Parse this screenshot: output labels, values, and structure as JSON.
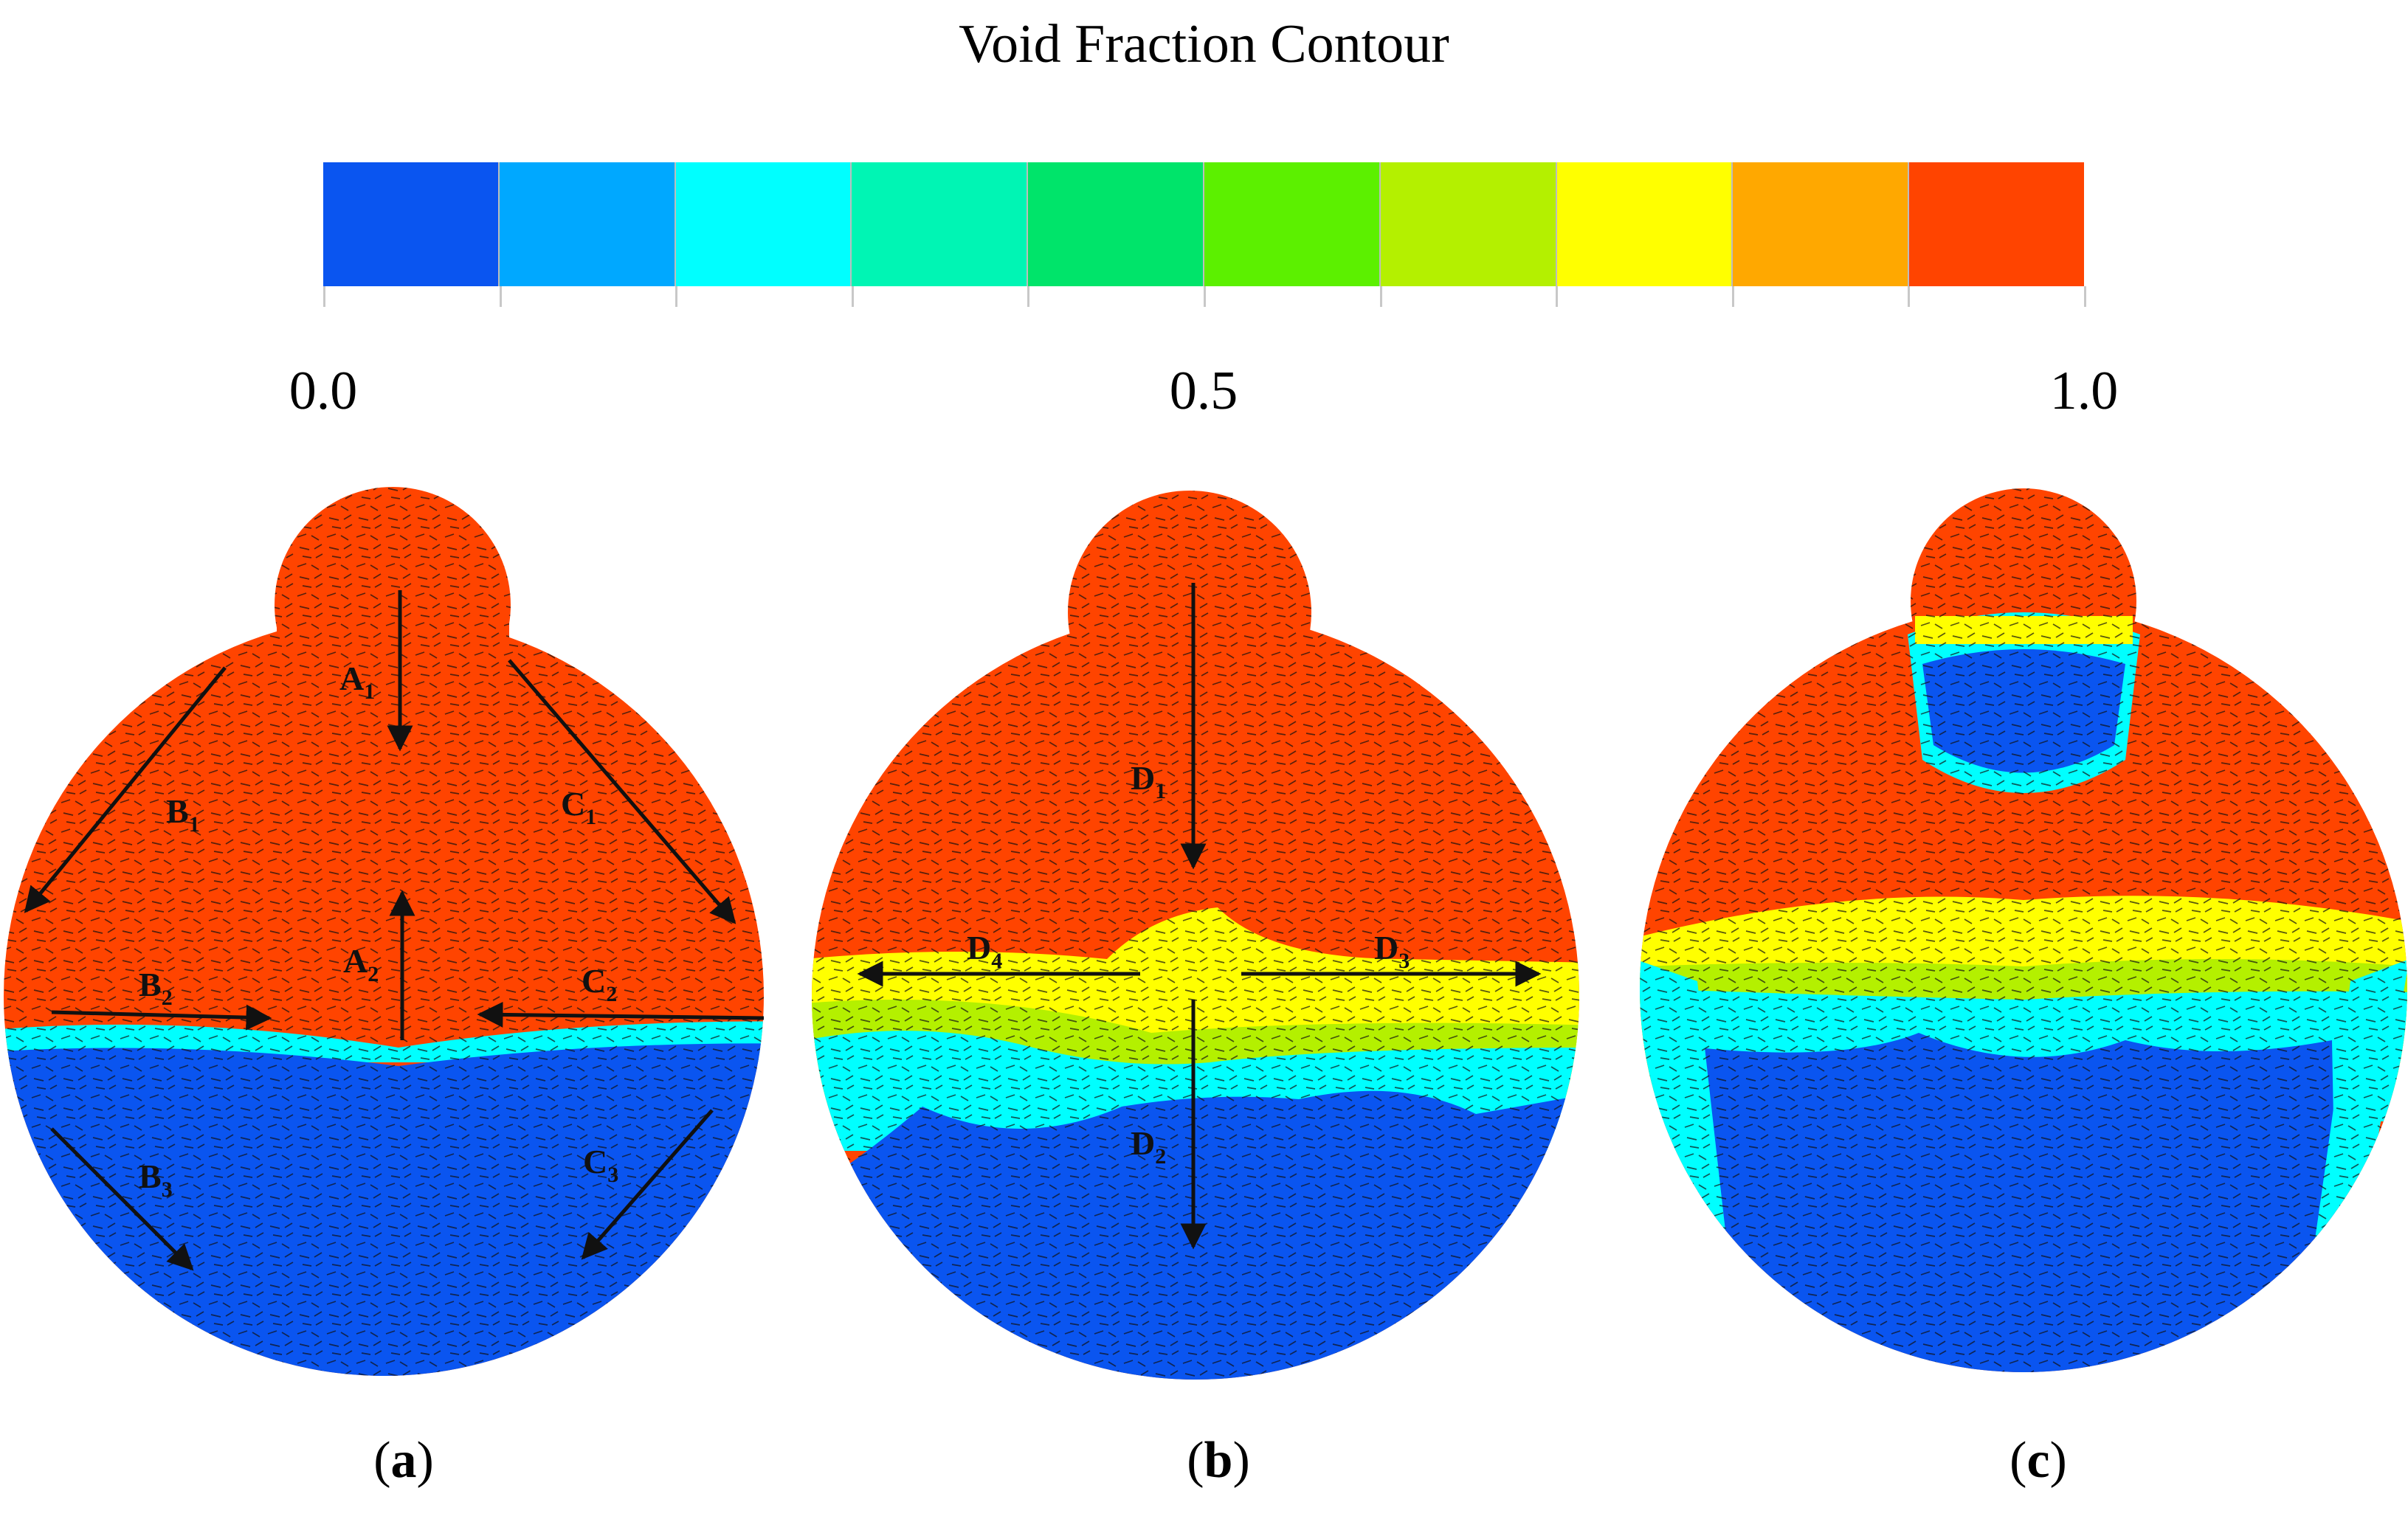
{
  "title": "Void Fraction Contour",
  "colorbar": {
    "colors": [
      "#0a55f0",
      "#00a8ff",
      "#00ffff",
      "#00f5b4",
      "#00e46a",
      "#5cf000",
      "#b4f000",
      "#ffff00",
      "#ffa800",
      "#ff4400"
    ],
    "labels": [
      "0.0",
      "0.5",
      "1.0"
    ],
    "label_values": [
      0.0,
      0.5,
      1.0
    ],
    "range": [
      0.0,
      1.0
    ],
    "segments": 10
  },
  "fill": {
    "liquid": "#0a55f0",
    "gas": "#ff4400",
    "mixed": [
      "#00ffff",
      "#b4f000",
      "#ffff00"
    ]
  },
  "panels": [
    {
      "label_open": "(",
      "label_letter": "a",
      "label_close": ")",
      "arrows": [
        {
          "base": "A",
          "sub": "1"
        },
        {
          "base": "A",
          "sub": "2"
        },
        {
          "base": "B",
          "sub": "1"
        },
        {
          "base": "B",
          "sub": "2"
        },
        {
          "base": "B",
          "sub": "3"
        },
        {
          "base": "C",
          "sub": "1"
        },
        {
          "base": "C",
          "sub": "2"
        },
        {
          "base": "C",
          "sub": "3"
        }
      ]
    },
    {
      "label_open": "(",
      "label_letter": "b",
      "label_close": ")",
      "arrows": [
        {
          "base": "D",
          "sub": "1"
        },
        {
          "base": "D",
          "sub": "2"
        },
        {
          "base": "D",
          "sub": "3"
        },
        {
          "base": "D",
          "sub": "4"
        }
      ]
    },
    {
      "label_open": "(",
      "label_letter": "c",
      "label_close": ")",
      "arrows": []
    }
  ]
}
